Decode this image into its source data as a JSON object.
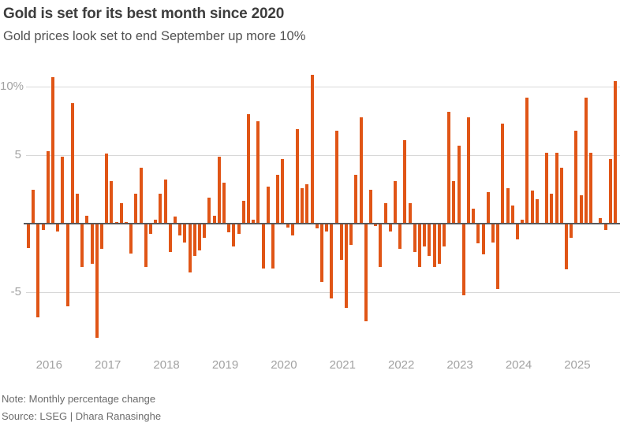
{
  "header": {
    "title": "Gold is set for its best month since 2020",
    "subtitle": "Gold prices look set to end September up more 10%"
  },
  "footer": {
    "note": "Note: Monthly percentage change",
    "source": "Source: LSEG | Dhara Ranasinghe"
  },
  "colors": {
    "bar": "#e05516",
    "grid": "#d8d8d8",
    "zero_line": "#58585a",
    "axis_text": "#a2a2a2",
    "title_text": "#3d3d3d",
    "subtitle_text": "#505050",
    "footer_text": "#6b6b6b",
    "background": "#ffffff"
  },
  "chart_data": {
    "type": "bar",
    "title": "Gold is set for its best month since 2020",
    "subtitle": "Gold prices look set to end September up more 10%",
    "unit": "%",
    "xlabel": "",
    "ylabel": "Monthly percentage change",
    "start_month": "2015-09",
    "end_month": "2025-09",
    "values": [
      -1.7,
      2.5,
      -6.8,
      -0.4,
      5.3,
      10.7,
      -0.5,
      4.9,
      -6.0,
      8.8,
      2.2,
      -3.1,
      0.6,
      -2.9,
      -8.3,
      -1.8,
      5.1,
      3.1,
      0.1,
      1.5,
      0.1,
      -2.1,
      2.2,
      4.1,
      -3.1,
      -0.7,
      0.3,
      2.2,
      3.2,
      -2.0,
      0.5,
      -0.8,
      -1.3,
      -3.5,
      -2.3,
      -1.9,
      -1.0,
      1.9,
      0.6,
      4.9,
      3.0,
      -0.6,
      -1.6,
      -0.7,
      1.7,
      8.0,
      0.3,
      7.5,
      -3.2,
      2.7,
      -3.2,
      3.6,
      4.7,
      -0.2,
      -0.8,
      6.9,
      2.6,
      2.9,
      10.9,
      -0.3,
      -4.2,
      -0.5,
      -5.4,
      6.8,
      -2.6,
      -6.1,
      -1.5,
      3.6,
      7.8,
      -7.1,
      2.5,
      -0.1,
      -3.1,
      1.5,
      -0.5,
      3.1,
      -1.8,
      6.1,
      1.5,
      -2.0,
      -3.1,
      -1.6,
      -2.3,
      -3.1,
      -2.9,
      -1.6,
      8.2,
      3.1,
      5.7,
      -5.2,
      7.8,
      1.1,
      -1.4,
      -2.2,
      2.3,
      -1.3,
      -4.7,
      7.3,
      2.6,
      1.3,
      -1.1,
      0.3,
      9.2,
      2.4,
      1.8,
      0.0,
      5.2,
      2.2,
      5.2,
      4.1,
      -3.3,
      -1.0,
      6.8,
      2.1,
      9.2,
      5.2,
      0.0,
      0.4,
      -0.4,
      4.7,
      10.4
    ],
    "yticks": [
      {
        "value": 10,
        "label": "10%"
      },
      {
        "value": 5,
        "label": "5"
      },
      {
        "value": -5,
        "label": "-5"
      }
    ],
    "xticks": [
      {
        "index": 4,
        "label": "2016"
      },
      {
        "index": 16,
        "label": "2017"
      },
      {
        "index": 28,
        "label": "2018"
      },
      {
        "index": 40,
        "label": "2019"
      },
      {
        "index": 52,
        "label": "2020"
      },
      {
        "index": 64,
        "label": "2021"
      },
      {
        "index": 76,
        "label": "2022"
      },
      {
        "index": 88,
        "label": "2023"
      },
      {
        "index": 100,
        "label": "2024"
      },
      {
        "index": 112,
        "label": "2025"
      }
    ],
    "ylim": [
      -8.7,
      11.3
    ],
    "grid": true,
    "legend": false
  }
}
